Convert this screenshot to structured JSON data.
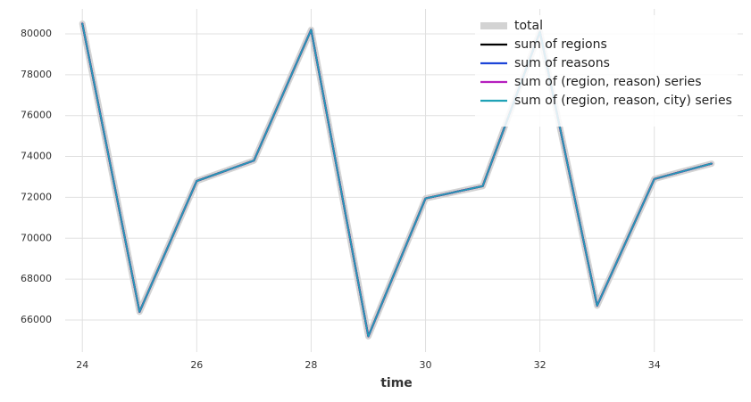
{
  "chart_data": {
    "type": "line",
    "xlabel": "time",
    "x": [
      24,
      25,
      26,
      27,
      28,
      29,
      30,
      31,
      32,
      33,
      34,
      35
    ],
    "series": [
      {
        "name": "total",
        "color": "#d3d3d3",
        "values": [
          80500,
          66400,
          72800,
          73800,
          80200,
          65200,
          71950,
          72550,
          80100,
          66700,
          72900,
          73650
        ]
      },
      {
        "name": "sum of regions",
        "color": "#000000",
        "values": [
          80500,
          66400,
          72800,
          73800,
          80200,
          65200,
          71950,
          72550,
          80100,
          66700,
          72900,
          73650
        ]
      },
      {
        "name": "sum of reasons",
        "color": "#1d45d8",
        "values": [
          80500,
          66400,
          72800,
          73800,
          80200,
          65200,
          71950,
          72550,
          80100,
          66700,
          72900,
          73650
        ]
      },
      {
        "name": "sum of (region, reason) series",
        "color": "#b51fbe",
        "values": [
          80500,
          66400,
          72800,
          73800,
          80200,
          65200,
          71950,
          72550,
          80100,
          66700,
          72900,
          73650
        ]
      },
      {
        "name": "sum of (region, reason, city) series",
        "color": "#1fa2b6",
        "values": [
          80500,
          66400,
          72800,
          73800,
          80200,
          65200,
          71950,
          72550,
          80100,
          66700,
          72900,
          73650
        ]
      }
    ],
    "xlim": [
      23.7,
      35.55
    ],
    "xticks": [
      24,
      26,
      28,
      30,
      32,
      34
    ],
    "ylim": [
      64430,
      81220
    ],
    "yticks": [
      66000,
      68000,
      70000,
      72000,
      74000,
      76000,
      78000,
      80000
    ],
    "grid": true,
    "legend": "upper right"
  }
}
